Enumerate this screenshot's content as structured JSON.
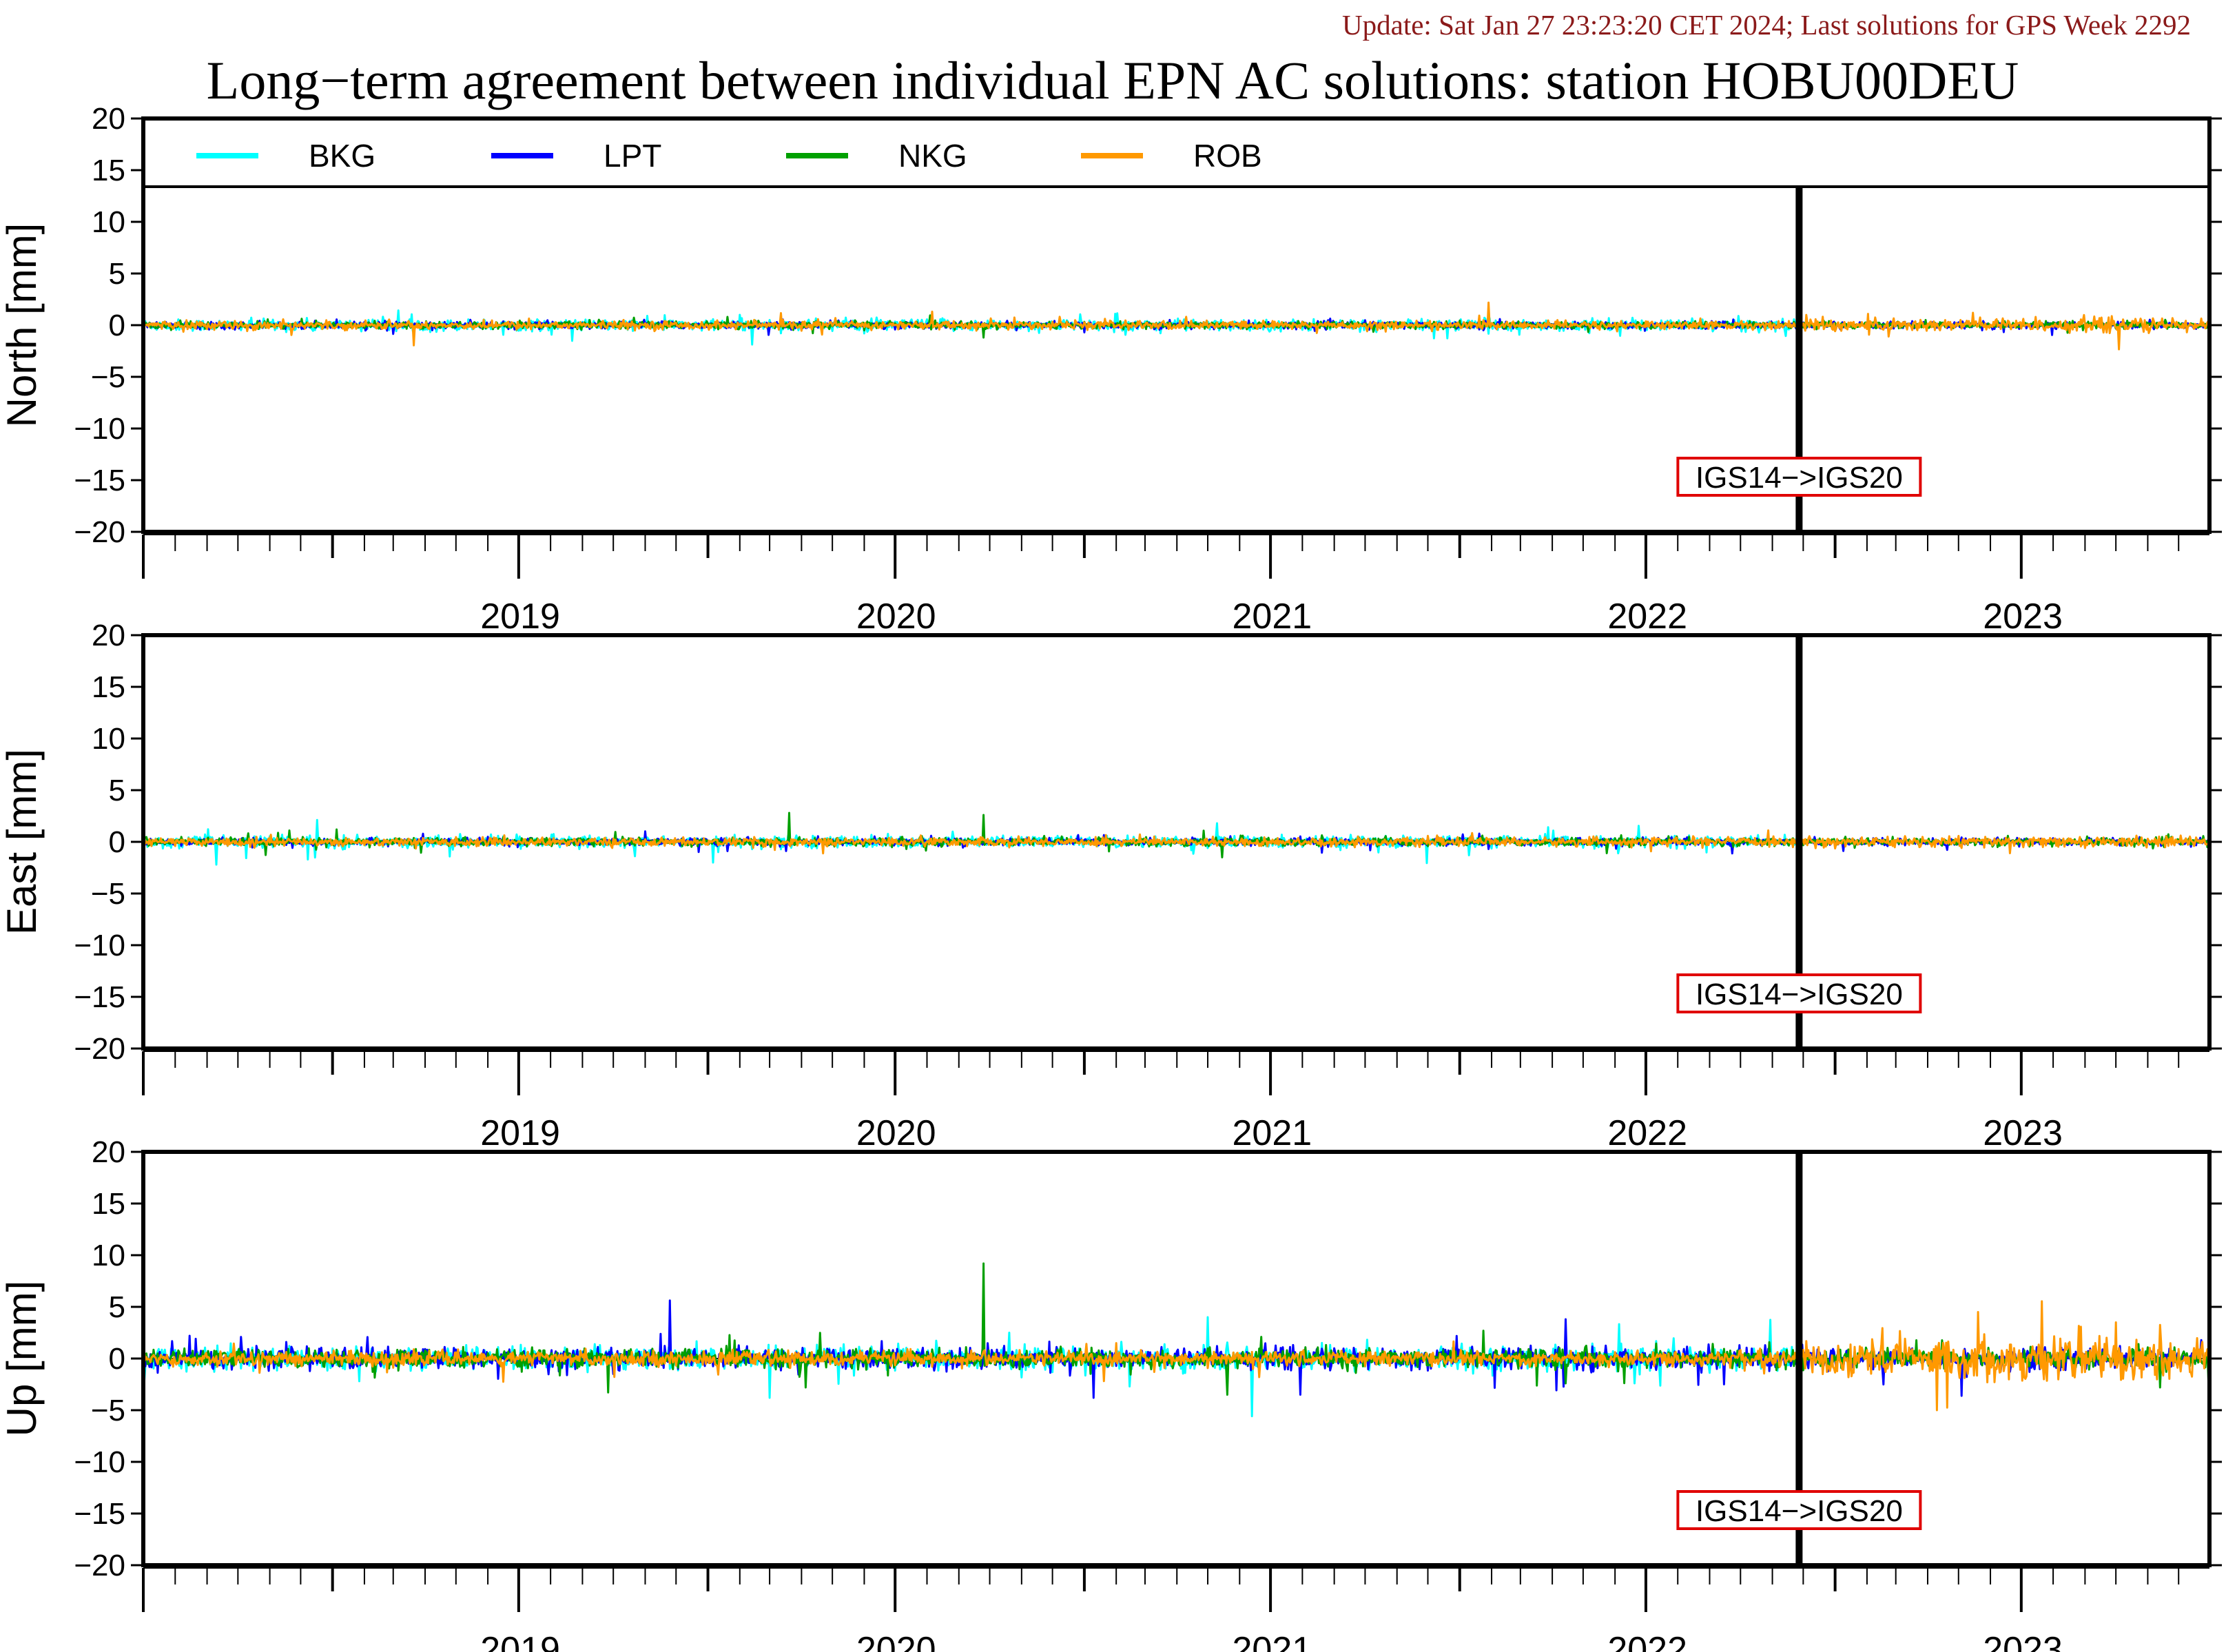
{
  "header": {
    "update": "Update: Sat Jan 27 23:23:20 CET 2024; Last solutions for GPS Week 2292",
    "title": "Long−term agreement between individual EPN AC solutions: station HOBU00DEU"
  },
  "colors": {
    "BKG": "#00ffff",
    "LPT": "#0000ff",
    "NKG": "#00a000",
    "ROB": "#ff9900",
    "annotation_border": "#e00000",
    "update_text": "#8b1a1a"
  },
  "chart_data": [
    {
      "type": "line",
      "ylabel": "North [mm]",
      "ylim": [
        -20,
        20
      ],
      "y_ticks": [
        20,
        15,
        10,
        5,
        0,
        -5,
        -10,
        -15,
        -20
      ],
      "y_tick_labels": [
        "20",
        "15",
        "10",
        "5",
        "0",
        "−5",
        "−10",
        "−15",
        "−20"
      ],
      "x_range": [
        "2018-07-01",
        "2023-12-31"
      ],
      "x_tick_labels": [
        "2019",
        "2020",
        "2021",
        "2022",
        "2023"
      ],
      "legend": {
        "placement": "top",
        "entries": [
          "BKG",
          "LPT",
          "NKG",
          "ROB"
        ]
      },
      "annotation": {
        "text": "IGS14−>IGS20",
        "date": "2022-11-27"
      },
      "series": [
        {
          "name": "BKG",
          "x": [
            "2018-07-01",
            "2022-11-27"
          ],
          "noise_mm": 0.5,
          "spikes": [
            {
              "date": "2020-02-01",
              "value": 1.0
            },
            {
              "date": "2020-06-01",
              "value": -0.8
            }
          ]
        },
        {
          "name": "LPT",
          "x": [
            "2018-07-01",
            "2023-12-31"
          ],
          "noise_mm": 0.3,
          "spikes": [
            {
              "date": "2021-01-01",
              "value": -0.7
            }
          ]
        },
        {
          "name": "NKG",
          "x": [
            "2018-07-01",
            "2023-12-31"
          ],
          "noise_mm": 0.3,
          "spikes": [
            {
              "date": "2020-09-25",
              "value": -1.2
            },
            {
              "date": "2020-01-20",
              "value": 0.8
            }
          ]
        },
        {
          "name": "ROB",
          "x": [
            "2018-07-01",
            "2023-12-31"
          ],
          "noise_mm": 0.35,
          "noise_after_mm": 0.6,
          "spikes": [
            {
              "date": "2023-05-15",
              "value": 1.2
            }
          ]
        }
      ]
    },
    {
      "type": "line",
      "ylabel": "East [mm]",
      "ylim": [
        -20,
        20
      ],
      "y_ticks": [
        20,
        15,
        10,
        5,
        0,
        -5,
        -10,
        -15,
        -20
      ],
      "y_tick_labels": [
        "20",
        "15",
        "10",
        "5",
        "0",
        "−5",
        "−10",
        "−15",
        "−20"
      ],
      "x_range": [
        "2018-07-01",
        "2023-12-31"
      ],
      "x_tick_labels": [
        "2019",
        "2020",
        "2021",
        "2022",
        "2023"
      ],
      "annotation": {
        "text": "IGS14−>IGS20",
        "date": "2022-11-27"
      },
      "series": [
        {
          "name": "BKG",
          "x": [
            "2018-07-01",
            "2022-11-27"
          ],
          "noise_mm": 0.5,
          "spikes": [
            {
              "date": "2018-09-10",
              "value": -2.2
            },
            {
              "date": "2021-05-10",
              "value": 1.8
            },
            {
              "date": "2022-01-10",
              "value": -1.3
            }
          ]
        },
        {
          "name": "LPT",
          "x": [
            "2018-07-01",
            "2023-12-31"
          ],
          "noise_mm": 0.3,
          "spikes": [
            {
              "date": "2022-01-20",
              "value": 0.8
            }
          ]
        },
        {
          "name": "NKG",
          "x": [
            "2018-07-01",
            "2023-12-31"
          ],
          "noise_mm": 0.35,
          "spikes": [
            {
              "date": "2018-11-20",
              "value": 1.1
            },
            {
              "date": "2019-01-05",
              "value": 1.2
            },
            {
              "date": "2020-03-20",
              "value": 2.8
            },
            {
              "date": "2020-09-25",
              "value": 2.6
            },
            {
              "date": "2021-05-15",
              "value": -1.5
            }
          ]
        },
        {
          "name": "ROB",
          "x": [
            "2018-07-01",
            "2023-12-31"
          ],
          "noise_mm": 0.35,
          "noise_after_mm": 0.45,
          "spikes": [
            {
              "date": "2023-06-20",
              "value": -1.1
            }
          ]
        }
      ]
    },
    {
      "type": "line",
      "ylabel": "Up [mm]",
      "ylim": [
        -20,
        20
      ],
      "y_ticks": [
        20,
        15,
        10,
        5,
        0,
        -5,
        -10,
        -15,
        -20
      ],
      "y_tick_labels": [
        "20",
        "15",
        "10",
        "5",
        "0",
        "−5",
        "−10",
        "−15",
        "−20"
      ],
      "x_range": [
        "2018-07-01",
        "2023-12-31"
      ],
      "x_tick_labels": [
        "2019",
        "2020",
        "2021",
        "2022",
        "2023"
      ],
      "annotation": {
        "text": "IGS14−>IGS20",
        "date": "2022-11-27"
      },
      "series": [
        {
          "name": "BKG",
          "x": [
            "2018-07-01",
            "2022-11-27"
          ],
          "noise_mm": 1.0,
          "spikes": [
            {
              "date": "2020-03-01",
              "value": -3.8
            },
            {
              "date": "2020-10-20",
              "value": 2.5
            },
            {
              "date": "2021-05-01",
              "value": 4.0
            },
            {
              "date": "2022-06-20",
              "value": -2.4
            }
          ]
        },
        {
          "name": "LPT",
          "x": [
            "2018-07-01",
            "2023-12-31"
          ],
          "noise_mm": 0.9,
          "spikes": [
            {
              "date": "2018-08-15",
              "value": 2.2
            },
            {
              "date": "2021-01-10",
              "value": -3.8
            },
            {
              "date": "2022-09-15",
              "value": -2.5
            }
          ]
        },
        {
          "name": "NKG",
          "x": [
            "2018-07-01",
            "2023-12-31"
          ],
          "noise_mm": 0.8,
          "spikes": [
            {
              "date": "2020-09-25",
              "value": 9.2
            },
            {
              "date": "2021-05-20",
              "value": -3.5
            },
            {
              "date": "2020-04-05",
              "value": -2.8
            }
          ]
        },
        {
          "name": "ROB",
          "x": [
            "2018-07-01",
            "2023-12-31"
          ],
          "noise_mm": 0.6,
          "noise_after_mm": 1.8,
          "spikes": [
            {
              "date": "2023-05-20",
              "value": 4.5
            },
            {
              "date": "2023-04-10",
              "value": -5.0
            },
            {
              "date": "2023-10-01",
              "value": 3.5
            }
          ]
        }
      ]
    }
  ]
}
